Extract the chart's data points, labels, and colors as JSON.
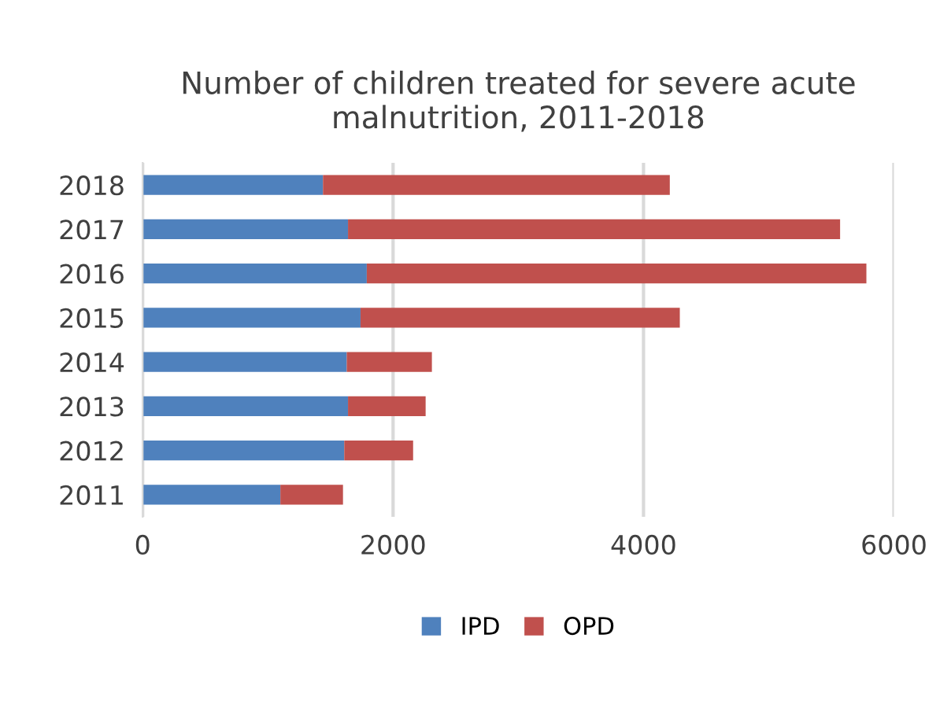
{
  "chart_data": {
    "type": "bar",
    "orientation": "horizontal",
    "stacked": true,
    "title": "Number of children treated for severe acute malnutrition, 2011-2018",
    "categories": [
      "2018",
      "2017",
      "2016",
      "2015",
      "2014",
      "2013",
      "2012",
      "2011"
    ],
    "series": [
      {
        "name": "IPD",
        "color": "#4f81bd",
        "values": [
          1440,
          1640,
          1790,
          1740,
          1630,
          1640,
          1610,
          1100
        ]
      },
      {
        "name": "OPD",
        "color": "#c0504d",
        "values": [
          2770,
          3930,
          3990,
          2550,
          680,
          620,
          550,
          500
        ]
      }
    ],
    "xlim": [
      0,
      6000
    ],
    "xticks": [
      0,
      2000,
      4000,
      6000
    ],
    "grid": "x",
    "legend": "bottom"
  }
}
